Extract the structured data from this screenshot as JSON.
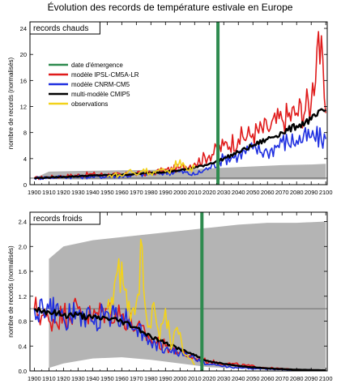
{
  "figure": {
    "title": "Évolution des records de température estivale en Europe"
  },
  "legend": {
    "items": [
      {
        "label": "date d'émergence",
        "color": "#2e8b4f"
      },
      {
        "label": "modèle IPSL-CM5A-LR",
        "color": "#e01b1b"
      },
      {
        "label": "modèle CNRM-CM5",
        "color": "#1f2fe0"
      },
      {
        "label": "multi-modèle CMIP5",
        "color": "#000000"
      },
      {
        "label": "observations",
        "color": "#f2d21b"
      }
    ]
  },
  "chart_data": [
    {
      "type": "line",
      "panel_label": "records chauds",
      "ylabel": "nombre de records (normalisés)",
      "xlim": [
        1897,
        2101
      ],
      "ylim": [
        0,
        25
      ],
      "x_ticks": [
        1900,
        1910,
        1920,
        1930,
        1940,
        1950,
        1960,
        1970,
        1980,
        1990,
        2000,
        2010,
        2020,
        2030,
        2040,
        2050,
        2060,
        2070,
        2080,
        2090,
        2100
      ],
      "y_ticks": [
        0,
        4,
        8,
        12,
        16,
        20,
        24
      ],
      "reference_line": 1.0,
      "emergence_year": 2026,
      "envelope": {
        "years": [
          1900,
          1910,
          1930,
          1960,
          1990,
          2010,
          2030,
          2050,
          2070,
          2090,
          2100
        ],
        "lower": [
          1.0,
          0.85,
          0.8,
          0.8,
          0.78,
          0.78,
          0.8,
          0.8,
          0.8,
          0.8,
          0.8
        ],
        "upper": [
          1.0,
          2.0,
          2.1,
          2.2,
          2.3,
          2.4,
          2.6,
          2.8,
          3.0,
          3.1,
          3.2
        ]
      },
      "series": [
        {
          "name": "modèle IPSL-CM5A-LR",
          "color": "#e01b1b",
          "years": [
            1900,
            1920,
            1940,
            1960,
            1980,
            2000,
            2010,
            2020,
            2030,
            2040,
            2050,
            2060,
            2070,
            2080,
            2090,
            2095,
            2100
          ],
          "values": [
            1.0,
            1.3,
            1.6,
            1.5,
            1.8,
            2.6,
            3.3,
            4.5,
            6.0,
            7.0,
            7.8,
            8.6,
            10.0,
            11.0,
            12.5,
            23.5,
            11.0
          ]
        },
        {
          "name": "modèle CNRM-CM5",
          "color": "#1f2fe0",
          "years": [
            1900,
            1920,
            1940,
            1960,
            1980,
            2000,
            2010,
            2020,
            2030,
            2040,
            2050,
            2060,
            2070,
            2080,
            2090,
            2100
          ],
          "values": [
            1.0,
            1.2,
            1.2,
            1.3,
            1.7,
            2.0,
            1.5,
            2.6,
            4.0,
            4.5,
            5.5,
            5.0,
            6.5,
            6.8,
            7.3,
            7.0
          ]
        },
        {
          "name": "multi-modèle CMIP5",
          "color": "#000000",
          "years": [
            1900,
            1920,
            1940,
            1960,
            1980,
            2000,
            2010,
            2020,
            2030,
            2040,
            2050,
            2060,
            2070,
            2080,
            2090,
            2100
          ],
          "values": [
            1.0,
            1.2,
            1.4,
            1.5,
            1.8,
            2.2,
            2.6,
            3.2,
            4.0,
            5.0,
            6.0,
            7.0,
            8.0,
            9.0,
            10.0,
            11.5
          ]
        },
        {
          "name": "observations",
          "color": "#f2d21b",
          "years": [
            1950,
            1955,
            1960,
            1965,
            1970,
            1975,
            1980,
            1985,
            1990,
            1995,
            2000,
            2005,
            2010
          ],
          "values": [
            1.2,
            1.6,
            1.3,
            2.2,
            1.5,
            2.4,
            1.7,
            2.1,
            2.0,
            2.4,
            3.8,
            2.2,
            2.6
          ]
        }
      ]
    },
    {
      "type": "line",
      "panel_label": "records froids",
      "ylabel": "nombre de records (normalisés)",
      "xlim": [
        1897,
        2101
      ],
      "ylim": [
        0,
        2.55
      ],
      "x_ticks": [
        1900,
        1910,
        1920,
        1930,
        1940,
        1950,
        1960,
        1970,
        1980,
        1990,
        2000,
        2010,
        2020,
        2030,
        2040,
        2050,
        2060,
        2070,
        2080,
        2090,
        2100
      ],
      "y_ticks": [
        0.0,
        0.4,
        0.8,
        1.2,
        1.6,
        2.0,
        2.4
      ],
      "reference_line": 1.0,
      "emergence_year": 2015,
      "envelope": {
        "years": [
          1910,
          1920,
          1940,
          1960,
          1980,
          2000,
          2020,
          2040,
          2060,
          2080,
          2100
        ],
        "lower": [
          0.05,
          0.12,
          0.2,
          0.22,
          0.18,
          0.12,
          0.06,
          0.04,
          0.02,
          0.02,
          0.02
        ],
        "upper": [
          1.8,
          2.0,
          2.1,
          2.15,
          2.2,
          2.25,
          2.3,
          2.35,
          2.38,
          2.38,
          2.4
        ]
      },
      "series": [
        {
          "name": "modèle IPSL-CM5A-LR",
          "color": "#e01b1b",
          "years": [
            1900,
            1910,
            1920,
            1930,
            1940,
            1950,
            1960,
            1970,
            1980,
            1990,
            2000,
            2010,
            2020,
            2040,
            2060,
            2080,
            2100
          ],
          "values": [
            1.0,
            0.8,
            0.9,
            1.0,
            0.85,
            1.0,
            0.9,
            0.7,
            0.5,
            0.4,
            0.3,
            0.2,
            0.15,
            0.1,
            0.05,
            0.02,
            0.01
          ]
        },
        {
          "name": "modèle CNRM-CM5",
          "color": "#1f2fe0",
          "years": [
            1900,
            1910,
            1920,
            1930,
            1940,
            1950,
            1960,
            1970,
            1980,
            1990,
            2000,
            2010,
            2020,
            2040,
            2060,
            2080,
            2100
          ],
          "values": [
            1.0,
            1.0,
            0.85,
            0.9,
            0.8,
            0.95,
            0.9,
            0.7,
            0.45,
            0.35,
            0.3,
            0.2,
            0.1,
            0.05,
            0.03,
            0.02,
            0.01
          ]
        },
        {
          "name": "multi-modèle CMIP5",
          "color": "#000000",
          "years": [
            1900,
            1910,
            1920,
            1930,
            1940,
            1950,
            1960,
            1970,
            1980,
            1990,
            2000,
            2010,
            2020,
            2040,
            2060,
            2080,
            2100
          ],
          "values": [
            1.0,
            0.95,
            0.9,
            0.9,
            0.85,
            0.85,
            0.8,
            0.7,
            0.55,
            0.45,
            0.35,
            0.25,
            0.15,
            0.08,
            0.04,
            0.02,
            0.01
          ]
        },
        {
          "name": "observations",
          "color": "#f2d21b",
          "years": [
            1950,
            1955,
            1958,
            1962,
            1966,
            1970,
            1974,
            1978,
            1982,
            1986,
            1990,
            1994,
            1998,
            2002,
            2006,
            2010
          ],
          "values": [
            1.0,
            1.4,
            1.8,
            1.3,
            0.8,
            1.1,
            2.0,
            0.7,
            1.1,
            0.5,
            1.0,
            0.35,
            0.7,
            0.3,
            0.2,
            0.1
          ]
        }
      ]
    }
  ]
}
